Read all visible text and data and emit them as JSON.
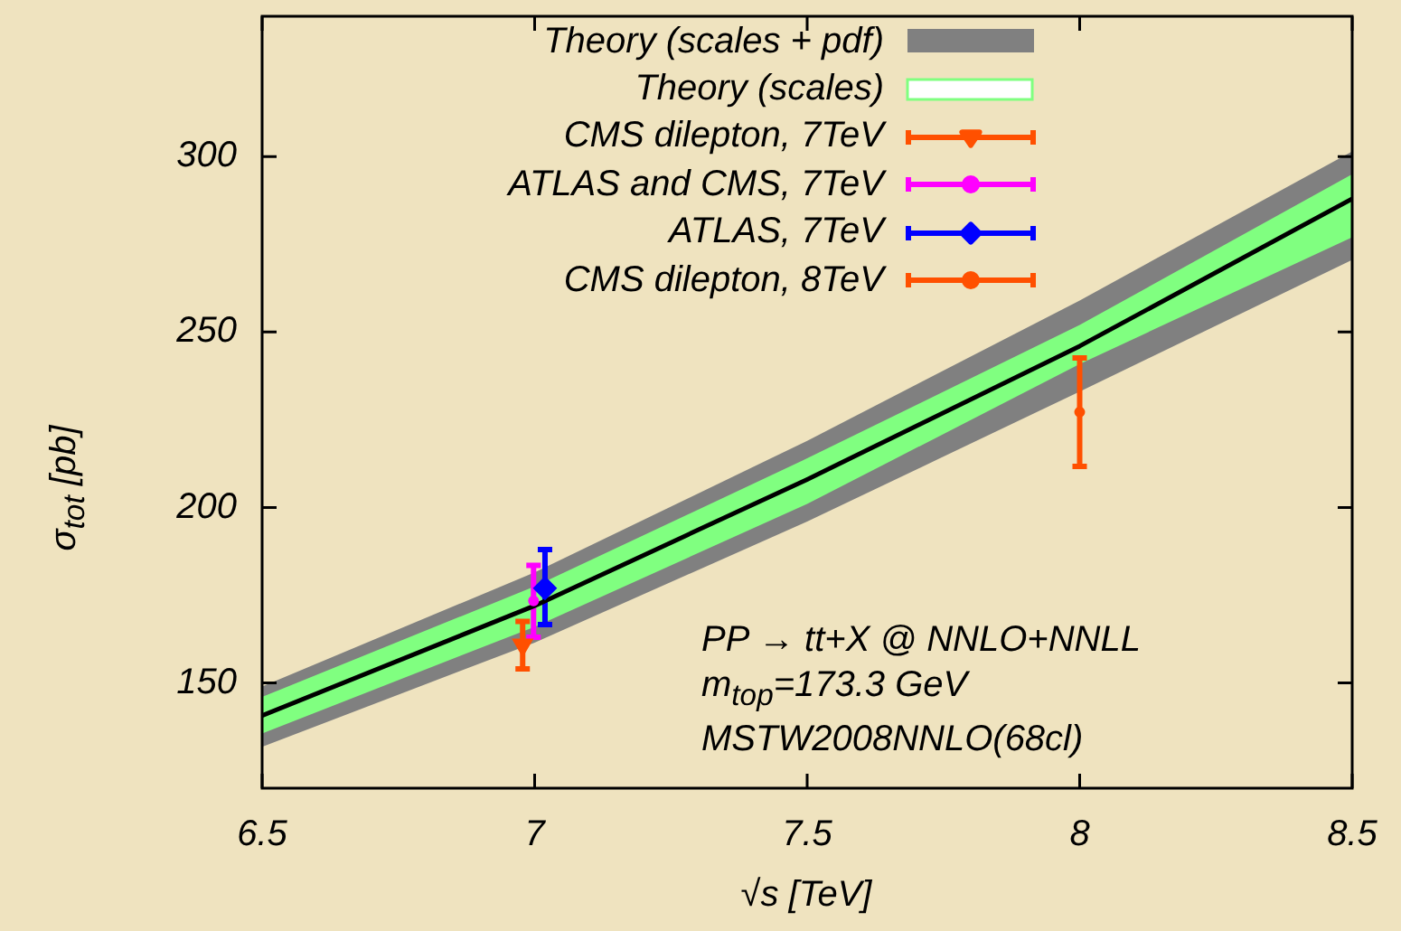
{
  "chart_data": {
    "type": "line",
    "xlabel": "√s [TeV]",
    "ylabel": "σ$_{tot}$ [pb]",
    "xlim": [
      6.5,
      8.5
    ],
    "xticks": [
      6.5,
      7,
      7.5,
      8,
      8.5
    ],
    "ylim": [
      120,
      340
    ],
    "yticks": [
      150,
      200,
      250,
      300
    ],
    "grid": false,
    "legend": "top right",
    "annotations": [
      "PP → tt+X @ NNLO+NNLL",
      "m$_{top}$=173.3 GeV",
      "MSTW2008NNLO(68cl)"
    ],
    "series": [
      {
        "name": "Theory (scales + pdf)",
        "type": "area",
        "color": "#808080",
        "x": [
          6.5,
          7,
          7.5,
          8,
          8.5
        ],
        "values": [
          null,
          null,
          null,
          null,
          null
        ],
        "lower": [
          131.8,
          161.5,
          196,
          233,
          270.6
        ],
        "upper": [
          149,
          181.5,
          219,
          259,
          301.5
        ]
      },
      {
        "name": "Theory (scales)",
        "type": "area",
        "color": "#80ff80",
        "x": [
          6.5,
          7,
          7.5,
          8,
          8.5
        ],
        "values": [
          null,
          null,
          null,
          null,
          null
        ],
        "lower": [
          135.6,
          166,
          201,
          240.9,
          277
        ],
        "upper": [
          146,
          177.5,
          214,
          252,
          295
        ]
      },
      {
        "name": "CMS dilepton, 7TeV",
        "type": "scatter",
        "color": "#ff5000",
        "marker": "triangle",
        "x": [
          6.978
        ],
        "values": [
          160.8
        ],
        "errors": [
          [
            154,
            167.5
          ]
        ]
      },
      {
        "name": "ATLAS and CMS, 7TeV",
        "type": "scatter",
        "color": "#ff00ff",
        "marker": "circle",
        "x": [
          6.998
        ],
        "values": [
          173.4
        ],
        "errors": [
          [
            163,
            183.5
          ]
        ]
      },
      {
        "name": "ATLAS, 7TeV",
        "type": "scatter",
        "color": "#0000ff",
        "marker": "diamond",
        "x": [
          7.019
        ],
        "values": [
          177
        ],
        "errors": [
          [
            166.6,
            188
          ]
        ]
      },
      {
        "name": "CMS dilepton, 8TeV",
        "type": "scatter",
        "color": "#ff5000",
        "marker": "circle",
        "x": [
          8.0
        ],
        "values": [
          227.2
        ],
        "errors": [
          [
            211.7,
            242.6
          ]
        ]
      },
      {
        "color": "#000000",
        "x": [
          6.5,
          7,
          7.5,
          8,
          8.5
        ],
        "values": [
          140.7,
          172,
          208,
          246,
          288
        ]
      }
    ]
  }
}
